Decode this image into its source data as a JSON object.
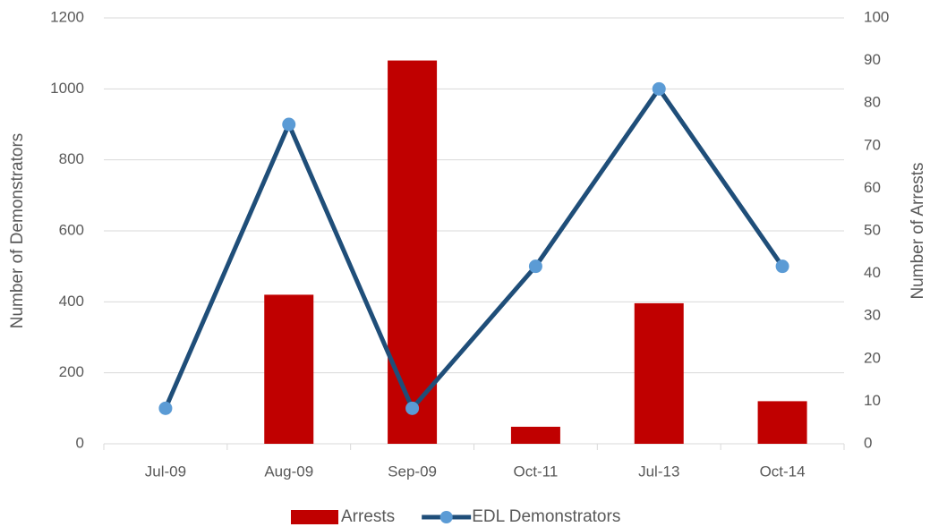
{
  "chart_data": {
    "type": "combo",
    "categories": [
      "Jul-09",
      "Aug-09",
      "Sep-09",
      "Oct-11",
      "Jul-13",
      "Oct-14"
    ],
    "y_label": "Number of Demonstrators",
    "y2_label": "Number of Arrests",
    "ylim": [
      0,
      1200
    ],
    "yticks": [
      0,
      200,
      400,
      600,
      800,
      1000,
      1200
    ],
    "y2lim": [
      0,
      100
    ],
    "y2ticks": [
      0,
      10,
      20,
      30,
      40,
      50,
      60,
      70,
      80,
      90,
      100
    ],
    "grid": true,
    "legend": "bottom",
    "series": [
      {
        "name": "Arrests",
        "type": "bar",
        "axis": "y2",
        "color": "#c00000",
        "values": [
          0,
          35,
          90,
          4,
          33,
          10
        ]
      },
      {
        "name": "EDL Demonstrators",
        "type": "line",
        "color": "#1f4e79",
        "marker_color": "#5b9bd5",
        "values": [
          100,
          900,
          100,
          500,
          1000,
          500
        ]
      }
    ]
  }
}
